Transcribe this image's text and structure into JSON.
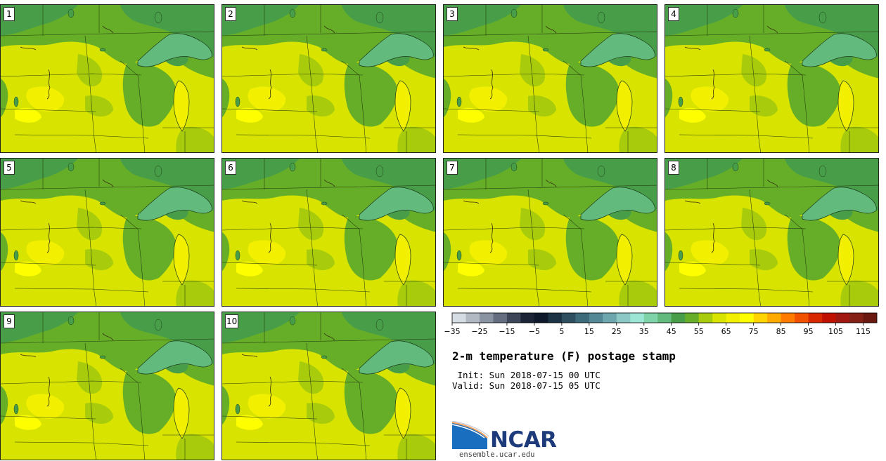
{
  "panels": [
    {
      "label": "1"
    },
    {
      "label": "2"
    },
    {
      "label": "3"
    },
    {
      "label": "4"
    },
    {
      "label": "5"
    },
    {
      "label": "6"
    },
    {
      "label": "7"
    },
    {
      "label": "8"
    },
    {
      "label": "9"
    },
    {
      "label": "10"
    }
  ],
  "colorbar": {
    "colors": [
      "#d6dce3",
      "#b2b9c3",
      "#8a93a2",
      "#646e80",
      "#3c4658",
      "#1c2437",
      "#0e1a2c",
      "#1b3344",
      "#2d4f60",
      "#3e6b7a",
      "#548795",
      "#6ea6ae",
      "#8cc9c6",
      "#9ce6d6",
      "#7ed4a8",
      "#62ba7c",
      "#489e48",
      "#66ae28",
      "#a8cc0c",
      "#d8e400",
      "#f2f000",
      "#fefe00",
      "#ffd400",
      "#ffaa00",
      "#ff7a00",
      "#f05000",
      "#d82800",
      "#c01000",
      "#a01810",
      "#842014",
      "#6a1810"
    ],
    "ticks": [
      "−35",
      "−25",
      "−15",
      "−5",
      "5",
      "15",
      "25",
      "35",
      "45",
      "55",
      "65",
      "75",
      "85",
      "95",
      "105",
      "115"
    ]
  },
  "title": "2-m temperature (F) postage stamp",
  "init_label": " Init: Sun 2018-07-15 00 UTC",
  "valid_label": "Valid: Sun 2018-07-15 05 UTC",
  "logo": {
    "brand": "NCAR"
  },
  "website": "ensemble.ucar.edu"
}
